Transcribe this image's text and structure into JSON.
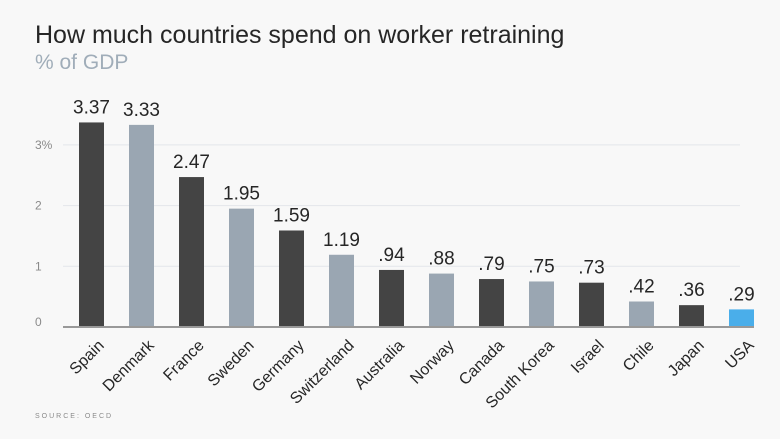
{
  "chart_data": {
    "type": "bar",
    "title": "How much countries spend on worker retraining",
    "subtitle": "% of GDP",
    "categories": [
      "Spain",
      "Denmark",
      "France",
      "Sweden",
      "Germany",
      "Switzerland",
      "Australia",
      "Norway",
      "Canada",
      "South Korea",
      "Israel",
      "Chile",
      "Japan",
      "USA"
    ],
    "values": [
      3.37,
      3.33,
      2.47,
      1.95,
      1.59,
      1.19,
      0.94,
      0.88,
      0.79,
      0.75,
      0.73,
      0.42,
      0.36,
      0.29
    ],
    "value_labels": [
      "3.37",
      "3.33",
      "2.47",
      "1.95",
      "1.59",
      "1.19",
      ".94",
      ".88",
      ".79",
      ".75",
      ".73",
      ".42",
      ".36",
      ".29"
    ],
    "bar_colors": [
      "#444444",
      "#9aa6b2",
      "#444444",
      "#9aa6b2",
      "#444444",
      "#9aa6b2",
      "#444444",
      "#9aa6b2",
      "#444444",
      "#9aa6b2",
      "#444444",
      "#9aa6b2",
      "#444444",
      "#4aaeea"
    ],
    "yticks": [
      0,
      1,
      2,
      3
    ],
    "ytick_labels": [
      "0",
      "1",
      "2",
      "3%"
    ],
    "ylim": [
      0,
      3.5
    ],
    "grid": true,
    "xlabel": "",
    "ylabel": "",
    "source": "SOURCE: OECD"
  }
}
